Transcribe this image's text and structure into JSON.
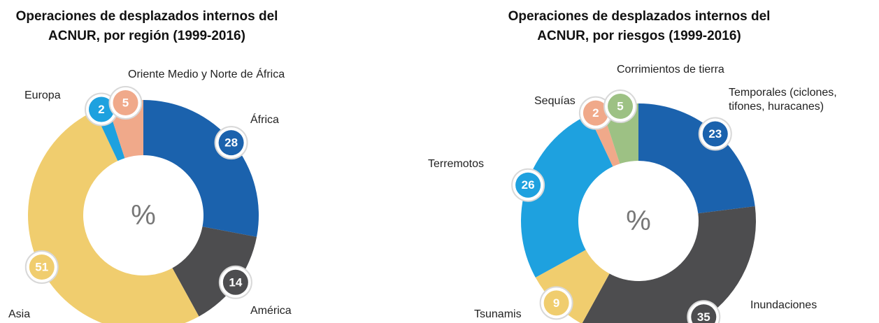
{
  "chart_data": [
    {
      "type": "donut",
      "title": "Operaciones de desplazados internos del ACNUR, por región (1999-2016)",
      "center_label": "%",
      "categories": [
        "África",
        "América",
        "Asia",
        "Europa",
        "Oriente Medio y Norte de África"
      ],
      "values": [
        28,
        14,
        51,
        2,
        5
      ],
      "colors": [
        "#1b62ad",
        "#4d4d4f",
        "#f0cd6e",
        "#1ea1df",
        "#f0a98a"
      ]
    },
    {
      "type": "donut",
      "title": "Operaciones de desplazados internos del ACNUR, por riesgos (1999-2016)",
      "center_label": "%",
      "categories": [
        "Temporales (ciclones, tifones, huracanes)",
        "Inundaciones",
        "Tsunamis",
        "Terremotos",
        "Sequías",
        "Corrimientos de tierra"
      ],
      "values": [
        23,
        35,
        9,
        26,
        2,
        5
      ],
      "colors": [
        "#1b62ad",
        "#4d4d4f",
        "#f0cd6e",
        "#1ea1df",
        "#f0a98a",
        "#9dc184"
      ]
    }
  ]
}
